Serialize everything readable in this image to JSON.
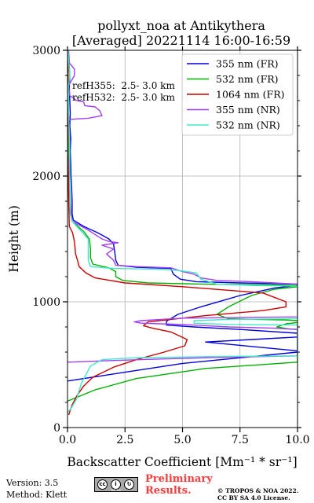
{
  "chart_data": {
    "type": "line",
    "title": "pollyxt_noa at Antikythera",
    "subtitle": "[Averaged] 20221114 16:00-16:59",
    "xlabel": "Backscatter Coefficient [Mm⁻¹ * sr⁻¹]",
    "ylabel": "Height (m)",
    "xlim": [
      0,
      10
    ],
    "ylim": [
      0,
      3000
    ],
    "xticks": [
      "0.0",
      "2.5",
      "5.0",
      "7.5",
      "10.0"
    ],
    "yticks": [
      "0",
      "1000",
      "2000",
      "3000"
    ],
    "grid": true,
    "legend_position": "top-right",
    "annotations": [
      "refH355:  2.5- 3.0 km",
      "refH532:  2.5- 3.0 km"
    ],
    "series": [
      {
        "name": "355 nm (FR)",
        "color": "#0000dd",
        "points": [
          [
            0.02,
            3000
          ],
          [
            0.06,
            2900
          ],
          [
            0.1,
            2800
          ],
          [
            0.08,
            2700
          ],
          [
            0.12,
            2500
          ],
          [
            0.1,
            2400
          ],
          [
            0.14,
            2300
          ],
          [
            0.12,
            2200
          ],
          [
            0.14,
            2100
          ],
          [
            0.15,
            2000
          ],
          [
            0.18,
            1900
          ],
          [
            0.2,
            1800
          ],
          [
            0.2,
            1700
          ],
          [
            0.25,
            1650
          ],
          [
            0.7,
            1600
          ],
          [
            1.3,
            1550
          ],
          [
            1.8,
            1500
          ],
          [
            2.0,
            1460
          ],
          [
            2.05,
            1400
          ],
          [
            2.1,
            1330
          ],
          [
            2.2,
            1290
          ],
          [
            3.0,
            1275
          ],
          [
            4.5,
            1265
          ],
          [
            4.6,
            1220
          ],
          [
            4.9,
            1180
          ],
          [
            5.6,
            1160
          ],
          [
            7.5,
            1150
          ],
          [
            9.0,
            1145
          ],
          [
            10.0,
            1140
          ],
          [
            10.0,
            1130
          ],
          [
            9.0,
            1110
          ],
          [
            7.5,
            1050
          ],
          [
            5.8,
            960
          ],
          [
            4.8,
            900
          ],
          [
            4.3,
            845
          ],
          [
            4.3,
            815
          ],
          [
            5.5,
            800
          ],
          [
            7.5,
            780
          ],
          [
            10.0,
            750
          ],
          [
            10.0,
            720
          ],
          [
            8.0,
            700
          ],
          [
            6.0,
            680
          ],
          [
            10.0,
            610
          ],
          [
            10.0,
            600
          ],
          [
            5.0,
            510
          ],
          [
            2.5,
            440
          ],
          [
            0.0,
            370
          ]
        ]
      },
      {
        "name": "532 nm (FR)",
        "color": "#00b000",
        "points": [
          [
            0.01,
            3000
          ],
          [
            0.03,
            2800
          ],
          [
            0.02,
            2600
          ],
          [
            0.04,
            2400
          ],
          [
            0.05,
            2200
          ],
          [
            0.07,
            2000
          ],
          [
            0.1,
            1800
          ],
          [
            0.12,
            1700
          ],
          [
            0.2,
            1640
          ],
          [
            0.7,
            1560
          ],
          [
            0.95,
            1500
          ],
          [
            1.0,
            1420
          ],
          [
            1.0,
            1350
          ],
          [
            1.1,
            1300
          ],
          [
            1.8,
            1270
          ],
          [
            2.1,
            1240
          ],
          [
            2.1,
            1200
          ],
          [
            2.4,
            1170
          ],
          [
            3.5,
            1150
          ],
          [
            6.0,
            1140
          ],
          [
            9.0,
            1135
          ],
          [
            10.0,
            1130
          ],
          [
            10.0,
            1120
          ],
          [
            9.0,
            1100
          ],
          [
            8.0,
            1050
          ],
          [
            7.0,
            960
          ],
          [
            6.5,
            900
          ],
          [
            7.0,
            865
          ],
          [
            9.5,
            855
          ],
          [
            10.0,
            850
          ],
          [
            10.0,
            835
          ],
          [
            9.5,
            825
          ],
          [
            9.1,
            800
          ],
          [
            9.6,
            785
          ],
          [
            10.0,
            780
          ],
          [
            10.0,
            520
          ],
          [
            6.0,
            470
          ],
          [
            3.0,
            390
          ],
          [
            1.2,
            300
          ],
          [
            0.0,
            210
          ]
        ]
      },
      {
        "name": "1064 nm (FR)",
        "color": "#cc0000",
        "points": [
          [
            0.0,
            3000
          ],
          [
            0.02,
            2800
          ],
          [
            0.0,
            2600
          ],
          [
            0.02,
            2400
          ],
          [
            0.0,
            2200
          ],
          [
            0.03,
            2000
          ],
          [
            0.05,
            1800
          ],
          [
            0.08,
            1600
          ],
          [
            0.22,
            1550
          ],
          [
            0.3,
            1480
          ],
          [
            0.35,
            1380
          ],
          [
            0.45,
            1320
          ],
          [
            0.5,
            1280
          ],
          [
            0.8,
            1230
          ],
          [
            1.2,
            1190
          ],
          [
            2.5,
            1150
          ],
          [
            5.0,
            1120
          ],
          [
            8.5,
            1070
          ],
          [
            9.5,
            1000
          ],
          [
            9.5,
            960
          ],
          [
            8.5,
            930
          ],
          [
            6.0,
            890
          ],
          [
            4.5,
            860
          ],
          [
            3.5,
            840
          ],
          [
            3.3,
            810
          ],
          [
            3.7,
            790
          ],
          [
            4.5,
            760
          ],
          [
            5.2,
            700
          ],
          [
            5.1,
            650
          ],
          [
            4.2,
            600
          ],
          [
            3.0,
            540
          ],
          [
            2.0,
            480
          ],
          [
            1.1,
            400
          ],
          [
            0.7,
            330
          ],
          [
            0.4,
            250
          ],
          [
            0.2,
            180
          ],
          [
            0.05,
            100
          ]
        ]
      },
      {
        "name": "355 nm (NR)",
        "color": "#a040f0",
        "points": [
          [
            0.05,
            3000
          ],
          [
            0.08,
            2900
          ],
          [
            0.3,
            2850
          ],
          [
            0.3,
            2800
          ],
          [
            0.05,
            2720
          ],
          [
            0.1,
            2640
          ],
          [
            0.4,
            2600
          ],
          [
            0.7,
            2590
          ],
          [
            0.75,
            2560
          ],
          [
            1.2,
            2550
          ],
          [
            1.4,
            2520
          ],
          [
            1.5,
            2480
          ],
          [
            0.9,
            2460
          ],
          [
            0.05,
            2450
          ],
          [
            0.1,
            2300
          ],
          [
            0.08,
            2100
          ],
          [
            0.1,
            1900
          ],
          [
            0.15,
            1700
          ],
          [
            0.2,
            1640
          ],
          [
            0.9,
            1570
          ],
          [
            1.5,
            1500
          ],
          [
            1.8,
            1480
          ],
          [
            2.2,
            1470
          ],
          [
            1.5,
            1450
          ],
          [
            2.0,
            1420
          ],
          [
            1.7,
            1380
          ],
          [
            2.0,
            1330
          ],
          [
            2.1,
            1290
          ],
          [
            3.0,
            1280
          ],
          [
            4.5,
            1270
          ],
          [
            5.0,
            1240
          ],
          [
            5.5,
            1220
          ],
          [
            5.8,
            1190
          ],
          [
            6.5,
            1170
          ],
          [
            8.0,
            1160
          ],
          [
            9.0,
            1150
          ],
          [
            10.0,
            1140
          ],
          [
            10.0,
            880
          ],
          [
            5.0,
            870
          ],
          [
            3.2,
            850
          ],
          [
            2.9,
            840
          ],
          [
            3.2,
            830
          ],
          [
            4.0,
            825
          ],
          [
            5.0,
            820
          ],
          [
            7.0,
            800
          ],
          [
            9.0,
            790
          ],
          [
            10.0,
            780
          ],
          [
            10.0,
            570
          ],
          [
            7.0,
            560
          ],
          [
            4.0,
            545
          ],
          [
            1.5,
            530
          ],
          [
            0.0,
            520
          ]
        ]
      },
      {
        "name": "532 nm (NR)",
        "color": "#40e8c8",
        "points": [
          [
            0.02,
            3000
          ],
          [
            0.05,
            2900
          ],
          [
            0.1,
            2800
          ],
          [
            0.03,
            2700
          ],
          [
            0.05,
            2500
          ],
          [
            0.08,
            2300
          ],
          [
            0.1,
            2100
          ],
          [
            0.1,
            1900
          ],
          [
            0.12,
            1700
          ],
          [
            0.2,
            1640
          ],
          [
            0.6,
            1560
          ],
          [
            0.9,
            1500
          ],
          [
            0.9,
            1400
          ],
          [
            0.9,
            1330
          ],
          [
            1.0,
            1280
          ],
          [
            2.0,
            1265
          ],
          [
            3.8,
            1260
          ],
          [
            4.8,
            1250
          ],
          [
            5.6,
            1230
          ],
          [
            5.8,
            1180
          ],
          [
            6.5,
            1140
          ],
          [
            8.0,
            1130
          ],
          [
            10.0,
            1125
          ],
          [
            10.0,
            865
          ],
          [
            7.0,
            860
          ],
          [
            5.5,
            850
          ],
          [
            5.5,
            830
          ],
          [
            7.0,
            820
          ],
          [
            10.0,
            815
          ],
          [
            10.0,
            570
          ],
          [
            6.5,
            565
          ],
          [
            3.0,
            555
          ],
          [
            1.5,
            540
          ],
          [
            1.0,
            490
          ],
          [
            0.6,
            350
          ],
          [
            0.4,
            230
          ],
          [
            0.15,
            150
          ],
          [
            0.0,
            120
          ]
        ]
      }
    ]
  },
  "footer": {
    "version": "Version: 3.5",
    "method": "Method: Klett",
    "prelim_line1": "Preliminary",
    "prelim_line2": "Results.",
    "copyright1": "© TROPOS & NOA 2022.",
    "copyright2": "CC BY SA 4.0 License.",
    "license_badge": "BY SA"
  }
}
